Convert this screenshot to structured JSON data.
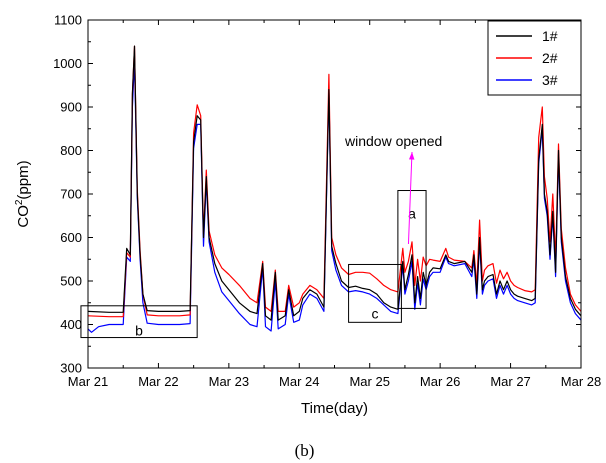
{
  "chart_data": {
    "type": "line",
    "title": "",
    "caption": "(b)",
    "xlabel": "Time(day)",
    "ylabel": "CO",
    "ylabel_sup": "2",
    "ylabel_unit": "(ppm)",
    "xlim": [
      0,
      7
    ],
    "ylim": [
      300,
      1100
    ],
    "x_tick_values": [
      0,
      1,
      2,
      3,
      4,
      5,
      6,
      7
    ],
    "x_tick_labels": [
      "Mar 21",
      "Mar 22",
      "Mar 23",
      "Mar 24",
      "Mar 25",
      "Mar 26",
      "Mar 27",
      "Mar 28"
    ],
    "y_ticks": [
      300,
      400,
      500,
      600,
      700,
      800,
      900,
      1000,
      1100
    ],
    "legend_position": "top-right",
    "series": [
      {
        "name": "1#",
        "color": "#000000",
        "points": [
          [
            0.0,
            430
          ],
          [
            0.3,
            428
          ],
          [
            0.5,
            428
          ],
          [
            0.55,
            575
          ],
          [
            0.6,
            560
          ],
          [
            0.63,
            930
          ],
          [
            0.66,
            1040
          ],
          [
            0.7,
            700
          ],
          [
            0.74,
            560
          ],
          [
            0.78,
            470
          ],
          [
            0.84,
            432
          ],
          [
            1.0,
            430
          ],
          [
            1.3,
            430
          ],
          [
            1.45,
            432
          ],
          [
            1.5,
            820
          ],
          [
            1.55,
            880
          ],
          [
            1.6,
            870
          ],
          [
            1.64,
            600
          ],
          [
            1.68,
            740
          ],
          [
            1.72,
            600
          ],
          [
            1.8,
            540
          ],
          [
            1.9,
            500
          ],
          [
            2.0,
            480
          ],
          [
            2.15,
            450
          ],
          [
            2.3,
            430
          ],
          [
            2.4,
            425
          ],
          [
            2.48,
            540
          ],
          [
            2.52,
            420
          ],
          [
            2.6,
            410
          ],
          [
            2.66,
            520
          ],
          [
            2.7,
            410
          ],
          [
            2.8,
            420
          ],
          [
            2.85,
            480
          ],
          [
            2.92,
            420
          ],
          [
            3.0,
            430
          ],
          [
            3.05,
            460
          ],
          [
            3.15,
            480
          ],
          [
            3.25,
            470
          ],
          [
            3.35,
            440
          ],
          [
            3.42,
            940
          ],
          [
            3.46,
            580
          ],
          [
            3.52,
            540
          ],
          [
            3.6,
            500
          ],
          [
            3.7,
            485
          ],
          [
            3.8,
            488
          ],
          [
            3.9,
            483
          ],
          [
            4.0,
            480
          ],
          [
            4.1,
            470
          ],
          [
            4.2,
            450
          ],
          [
            4.3,
            440
          ],
          [
            4.4,
            435
          ],
          [
            4.47,
            545
          ],
          [
            4.5,
            480
          ],
          [
            4.55,
            515
          ],
          [
            4.6,
            560
          ],
          [
            4.64,
            450
          ],
          [
            4.68,
            510
          ],
          [
            4.72,
            460
          ],
          [
            4.76,
            520
          ],
          [
            4.8,
            490
          ],
          [
            4.85,
            520
          ],
          [
            4.9,
            530
          ],
          [
            5.0,
            528
          ],
          [
            5.08,
            560
          ],
          [
            5.12,
            545
          ],
          [
            5.2,
            540
          ],
          [
            5.35,
            545
          ],
          [
            5.45,
            520
          ],
          [
            5.48,
            560
          ],
          [
            5.52,
            470
          ],
          [
            5.56,
            600
          ],
          [
            5.6,
            480
          ],
          [
            5.63,
            500
          ],
          [
            5.68,
            510
          ],
          [
            5.75,
            515
          ],
          [
            5.8,
            470
          ],
          [
            5.85,
            500
          ],
          [
            5.9,
            480
          ],
          [
            5.95,
            500
          ],
          [
            6.0,
            480
          ],
          [
            6.05,
            470
          ],
          [
            6.1,
            465
          ],
          [
            6.2,
            460
          ],
          [
            6.3,
            455
          ],
          [
            6.35,
            460
          ],
          [
            6.4,
            780
          ],
          [
            6.45,
            860
          ],
          [
            6.48,
            700
          ],
          [
            6.52,
            660
          ],
          [
            6.56,
            560
          ],
          [
            6.6,
            660
          ],
          [
            6.64,
            520
          ],
          [
            6.68,
            800
          ],
          [
            6.72,
            600
          ],
          [
            6.78,
            510
          ],
          [
            6.85,
            460
          ],
          [
            6.92,
            435
          ],
          [
            7.0,
            420
          ]
        ]
      },
      {
        "name": "2#",
        "color": "#ff0000",
        "points": [
          [
            0.0,
            420
          ],
          [
            0.3,
            418
          ],
          [
            0.5,
            418
          ],
          [
            0.55,
            565
          ],
          [
            0.6,
            555
          ],
          [
            0.63,
            930
          ],
          [
            0.66,
            1040
          ],
          [
            0.7,
            710
          ],
          [
            0.74,
            570
          ],
          [
            0.78,
            470
          ],
          [
            0.84,
            422
          ],
          [
            1.0,
            420
          ],
          [
            1.3,
            420
          ],
          [
            1.45,
            422
          ],
          [
            1.5,
            840
          ],
          [
            1.55,
            905
          ],
          [
            1.6,
            880
          ],
          [
            1.64,
            610
          ],
          [
            1.68,
            755
          ],
          [
            1.72,
            615
          ],
          [
            1.8,
            560
          ],
          [
            1.9,
            530
          ],
          [
            2.0,
            515
          ],
          [
            2.15,
            490
          ],
          [
            2.3,
            460
          ],
          [
            2.4,
            450
          ],
          [
            2.48,
            545
          ],
          [
            2.52,
            440
          ],
          [
            2.6,
            430
          ],
          [
            2.66,
            525
          ],
          [
            2.7,
            430
          ],
          [
            2.8,
            430
          ],
          [
            2.85,
            490
          ],
          [
            2.92,
            440
          ],
          [
            3.0,
            450
          ],
          [
            3.05,
            470
          ],
          [
            3.15,
            490
          ],
          [
            3.25,
            480
          ],
          [
            3.35,
            460
          ],
          [
            3.42,
            975
          ],
          [
            3.46,
            600
          ],
          [
            3.52,
            560
          ],
          [
            3.6,
            530
          ],
          [
            3.7,
            515
          ],
          [
            3.8,
            520
          ],
          [
            3.9,
            520
          ],
          [
            4.0,
            518
          ],
          [
            4.1,
            505
          ],
          [
            4.2,
            490
          ],
          [
            4.3,
            480
          ],
          [
            4.4,
            475
          ],
          [
            4.47,
            575
          ],
          [
            4.5,
            520
          ],
          [
            4.55,
            545
          ],
          [
            4.6,
            590
          ],
          [
            4.64,
            490
          ],
          [
            4.68,
            550
          ],
          [
            4.72,
            500
          ],
          [
            4.76,
            555
          ],
          [
            4.8,
            535
          ],
          [
            4.85,
            550
          ],
          [
            4.9,
            548
          ],
          [
            5.0,
            545
          ],
          [
            5.08,
            575
          ],
          [
            5.12,
            555
          ],
          [
            5.2,
            548
          ],
          [
            5.35,
            545
          ],
          [
            5.45,
            530
          ],
          [
            5.48,
            570
          ],
          [
            5.52,
            490
          ],
          [
            5.56,
            640
          ],
          [
            5.6,
            500
          ],
          [
            5.63,
            525
          ],
          [
            5.68,
            535
          ],
          [
            5.75,
            540
          ],
          [
            5.8,
            495
          ],
          [
            5.85,
            525
          ],
          [
            5.9,
            505
          ],
          [
            5.95,
            520
          ],
          [
            6.0,
            500
          ],
          [
            6.05,
            490
          ],
          [
            6.1,
            485
          ],
          [
            6.2,
            478
          ],
          [
            6.3,
            475
          ],
          [
            6.35,
            480
          ],
          [
            6.4,
            830
          ],
          [
            6.45,
            900
          ],
          [
            6.48,
            740
          ],
          [
            6.52,
            690
          ],
          [
            6.56,
            590
          ],
          [
            6.6,
            700
          ],
          [
            6.64,
            550
          ],
          [
            6.68,
            815
          ],
          [
            6.72,
            620
          ],
          [
            6.78,
            530
          ],
          [
            6.85,
            470
          ],
          [
            6.92,
            445
          ],
          [
            7.0,
            430
          ]
        ]
      },
      {
        "name": "3#",
        "color": "#0000ff",
        "points": [
          [
            0.0,
            390
          ],
          [
            0.05,
            382
          ],
          [
            0.15,
            395
          ],
          [
            0.3,
            400
          ],
          [
            0.5,
            400
          ],
          [
            0.55,
            555
          ],
          [
            0.6,
            545
          ],
          [
            0.63,
            900
          ],
          [
            0.66,
            1005
          ],
          [
            0.7,
            690
          ],
          [
            0.74,
            550
          ],
          [
            0.78,
            450
          ],
          [
            0.84,
            403
          ],
          [
            1.0,
            400
          ],
          [
            1.3,
            400
          ],
          [
            1.45,
            402
          ],
          [
            1.5,
            805
          ],
          [
            1.55,
            860
          ],
          [
            1.6,
            860
          ],
          [
            1.64,
            580
          ],
          [
            1.68,
            730
          ],
          [
            1.72,
            590
          ],
          [
            1.8,
            520
          ],
          [
            1.9,
            475
          ],
          [
            2.0,
            455
          ],
          [
            2.15,
            425
          ],
          [
            2.3,
            400
          ],
          [
            2.4,
            395
          ],
          [
            2.48,
            530
          ],
          [
            2.52,
            395
          ],
          [
            2.6,
            385
          ],
          [
            2.66,
            500
          ],
          [
            2.7,
            390
          ],
          [
            2.8,
            400
          ],
          [
            2.85,
            470
          ],
          [
            2.92,
            405
          ],
          [
            3.0,
            410
          ],
          [
            3.05,
            445
          ],
          [
            3.15,
            470
          ],
          [
            3.25,
            460
          ],
          [
            3.35,
            430
          ],
          [
            3.42,
            935
          ],
          [
            3.46,
            570
          ],
          [
            3.52,
            525
          ],
          [
            3.6,
            490
          ],
          [
            3.7,
            475
          ],
          [
            3.8,
            478
          ],
          [
            3.9,
            475
          ],
          [
            4.0,
            470
          ],
          [
            4.1,
            460
          ],
          [
            4.2,
            445
          ],
          [
            4.3,
            430
          ],
          [
            4.4,
            425
          ],
          [
            4.47,
            535
          ],
          [
            4.5,
            470
          ],
          [
            4.55,
            500
          ],
          [
            4.6,
            545
          ],
          [
            4.64,
            435
          ],
          [
            4.68,
            495
          ],
          [
            4.72,
            445
          ],
          [
            4.76,
            505
          ],
          [
            4.8,
            480
          ],
          [
            4.85,
            510
          ],
          [
            4.9,
            520
          ],
          [
            5.0,
            520
          ],
          [
            5.08,
            555
          ],
          [
            5.12,
            540
          ],
          [
            5.2,
            535
          ],
          [
            5.35,
            540
          ],
          [
            5.45,
            510
          ],
          [
            5.48,
            550
          ],
          [
            5.52,
            460
          ],
          [
            5.56,
            590
          ],
          [
            5.6,
            470
          ],
          [
            5.63,
            490
          ],
          [
            5.68,
            500
          ],
          [
            5.75,
            505
          ],
          [
            5.8,
            460
          ],
          [
            5.85,
            490
          ],
          [
            5.9,
            470
          ],
          [
            5.95,
            490
          ],
          [
            6.0,
            470
          ],
          [
            6.05,
            460
          ],
          [
            6.1,
            455
          ],
          [
            6.2,
            450
          ],
          [
            6.3,
            445
          ],
          [
            6.35,
            450
          ],
          [
            6.4,
            770
          ],
          [
            6.45,
            850
          ],
          [
            6.48,
            690
          ],
          [
            6.52,
            650
          ],
          [
            6.56,
            550
          ],
          [
            6.6,
            650
          ],
          [
            6.64,
            510
          ],
          [
            6.68,
            790
          ],
          [
            6.72,
            590
          ],
          [
            6.78,
            500
          ],
          [
            6.85,
            450
          ],
          [
            6.92,
            425
          ],
          [
            7.0,
            410
          ]
        ]
      }
    ],
    "annotations": [
      {
        "label": "a",
        "box": {
          "x0": 4.4,
          "x1": 4.8,
          "y0": 437,
          "y1": 708
        }
      },
      {
        "label": "b",
        "box": {
          "x0": -0.1,
          "x1": 1.55,
          "y0": 370,
          "y1": 443
        }
      },
      {
        "label": "c",
        "box": {
          "x0": 3.7,
          "x1": 4.45,
          "y0": 405,
          "y1": 538
        }
      },
      {
        "label": "window opened",
        "arrow_to": {
          "x": 4.55,
          "y": 585
        },
        "arrow_color": "#ff00ff"
      }
    ]
  }
}
